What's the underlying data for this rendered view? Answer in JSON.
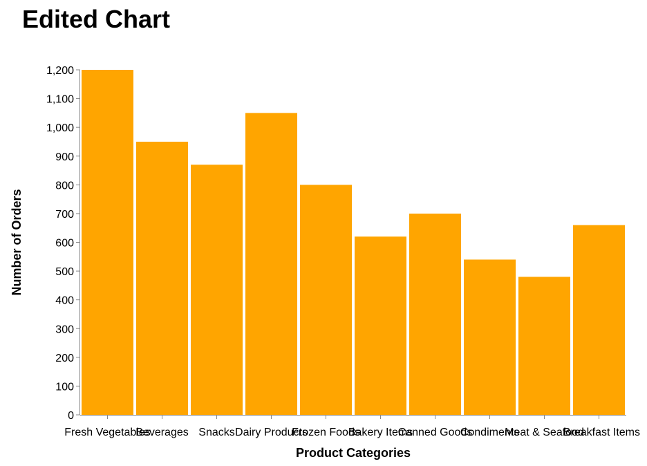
{
  "chart_data": {
    "type": "bar",
    "title": "Edited Chart",
    "xlabel": "Product Categories",
    "ylabel": "Number of Orders",
    "categories": [
      "Fresh Vegetables",
      "Beverages",
      "Snacks",
      "Dairy Products",
      "Frozen Foods",
      "Bakery Items",
      "Canned Goods",
      "Condiments",
      "Meat & Seafood",
      "Breakfast Items"
    ],
    "values": [
      1200,
      950,
      870,
      1050,
      800,
      620,
      700,
      540,
      480,
      660
    ],
    "ylim": [
      0,
      1200
    ],
    "yticks": [
      0,
      100,
      200,
      300,
      400,
      500,
      600,
      700,
      800,
      900,
      1000,
      1100,
      1200
    ],
    "ytick_labels": [
      "0",
      "100",
      "200",
      "300",
      "400",
      "500",
      "600",
      "700",
      "800",
      "900",
      "1,000",
      "1,100",
      "1,200"
    ],
    "bar_color": "#FFA500",
    "axis_color": "#888888",
    "grid": false
  }
}
